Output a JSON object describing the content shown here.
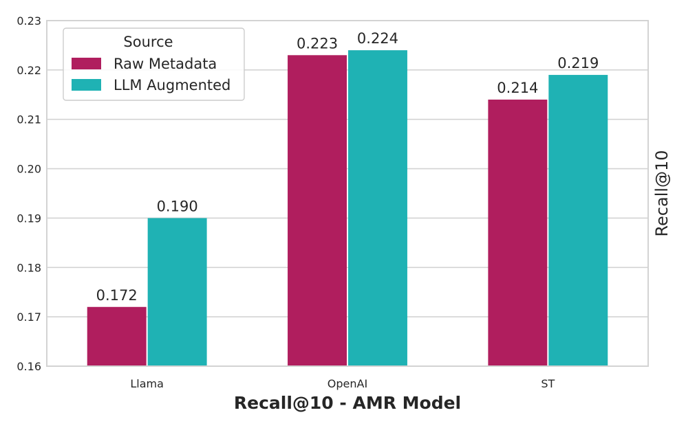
{
  "chart_data": {
    "type": "bar",
    "title": "",
    "xlabel": "Recall@10 - AMR Model",
    "ylabel": "Recall@10",
    "categories": [
      "Llama",
      "OpenAI",
      "ST"
    ],
    "series": [
      {
        "name": "Raw Metadata",
        "values": [
          0.172,
          0.223,
          0.214
        ],
        "labels": [
          "0.172",
          "0.223",
          "0.214"
        ],
        "color": "#b01e5e"
      },
      {
        "name": "LLM Augmented",
        "values": [
          0.19,
          0.224,
          0.219
        ],
        "labels": [
          "0.190",
          "0.224",
          "0.219"
        ],
        "color": "#1fb2b4"
      }
    ],
    "ylim": [
      0.16,
      0.23
    ],
    "yticks": [
      "0.16",
      "0.17",
      "0.18",
      "0.19",
      "0.20",
      "0.21",
      "0.22",
      "0.23"
    ],
    "grid": true,
    "legend": {
      "title": "Source",
      "position": "top-left"
    },
    "ylabel_position": "right"
  }
}
